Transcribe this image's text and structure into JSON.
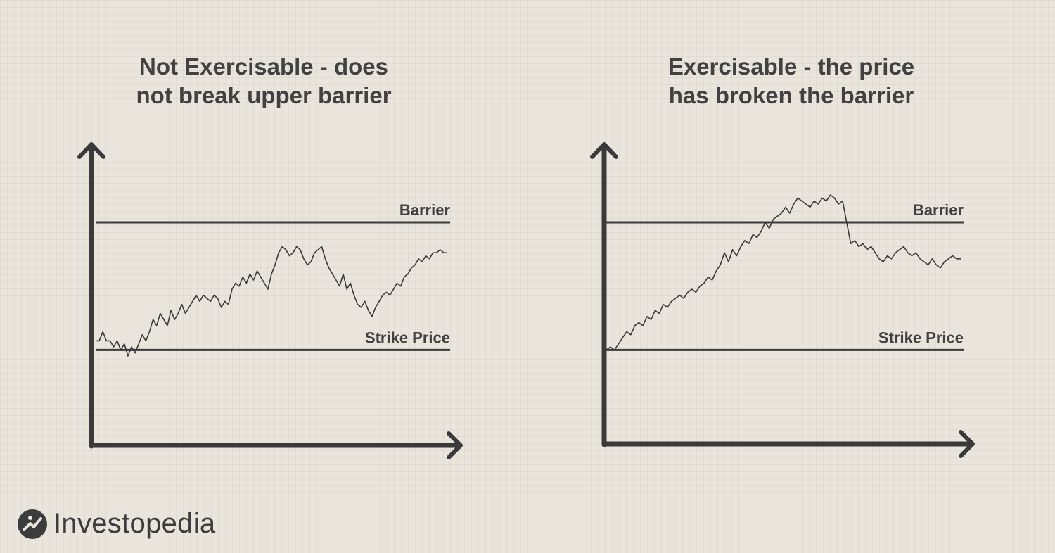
{
  "brand": {
    "name": "Investopedia",
    "icon": "investopedia-logo-icon"
  },
  "colors": {
    "background": "#e9e5dd",
    "ink": "#3f3f3f",
    "line": "#3a3a3a"
  },
  "chart_data": [
    {
      "type": "line",
      "title": [
        "Not Exercisable - does",
        "not break upper barrier"
      ],
      "ylim": [
        0,
        100
      ],
      "reference_lines": [
        {
          "label": "Barrier",
          "value": 72
        },
        {
          "label": "Strike Price",
          "value": 30
        }
      ],
      "series": [
        {
          "values": [
            33,
            33,
            36,
            33,
            33,
            31,
            33,
            30,
            32,
            28,
            31,
            29,
            32,
            35,
            33,
            36,
            40,
            38,
            42,
            40,
            38,
            43,
            40,
            42,
            45,
            42,
            44,
            46,
            48,
            46,
            48,
            47,
            46,
            48,
            47,
            44,
            46,
            45,
            50,
            52,
            51,
            54,
            52,
            55,
            53,
            56,
            54,
            52,
            50,
            55,
            58,
            62,
            64,
            63,
            61,
            62,
            64,
            63,
            60,
            58,
            59,
            62,
            63,
            64,
            60,
            57,
            55,
            53,
            51,
            55,
            50,
            52,
            48,
            45,
            44,
            46,
            43,
            41,
            44,
            46,
            48,
            49,
            48,
            50,
            52,
            51,
            54,
            55,
            57,
            58,
            60,
            59,
            61,
            60,
            62,
            62,
            63,
            62,
            62
          ]
        }
      ]
    },
    {
      "type": "line",
      "title": [
        "Exercisable - the price",
        "has broken the barrier"
      ],
      "ylim": [
        0,
        100
      ],
      "reference_lines": [
        {
          "label": "Barrier",
          "value": 72
        },
        {
          "label": "Strike Price",
          "value": 30
        }
      ],
      "series": [
        {
          "values": [
            30,
            31,
            30,
            32,
            34,
            36,
            35,
            38,
            39,
            38,
            41,
            40,
            43,
            42,
            45,
            44,
            46,
            47,
            48,
            47,
            49,
            50,
            49,
            51,
            52,
            54,
            53,
            56,
            58,
            62,
            59,
            63,
            61,
            64,
            66,
            65,
            68,
            67,
            69,
            72,
            70,
            73,
            74,
            75,
            77,
            75,
            78,
            80,
            79,
            78,
            77,
            79,
            78,
            80,
            79,
            81,
            80,
            78,
            79,
            72,
            65,
            66,
            64,
            65,
            63,
            64,
            62,
            60,
            59,
            61,
            60,
            62,
            63,
            64,
            62,
            61,
            62,
            60,
            59,
            58,
            60,
            58,
            57,
            59,
            60,
            61,
            60,
            60
          ]
        }
      ]
    }
  ]
}
